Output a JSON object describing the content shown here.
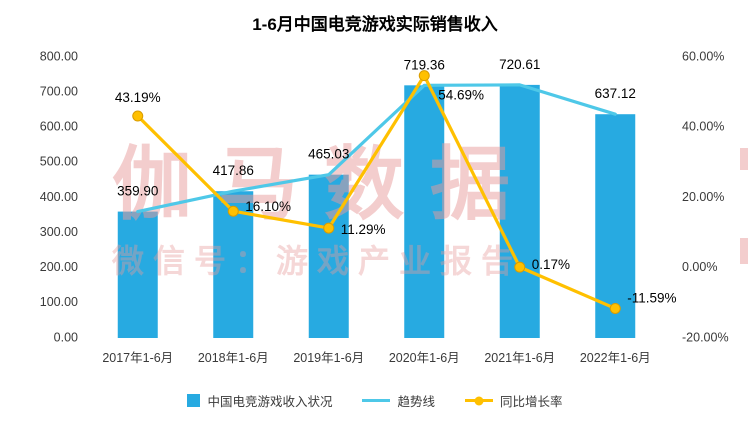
{
  "title": "1-6月中国电竞游戏实际销售收入",
  "watermark": {
    "main": "伽马数据",
    "sub": "微信号：游戏产业报告"
  },
  "legend": [
    {
      "label": "中国电竞游戏收入状况",
      "type": "bar",
      "color": "#27AAE1"
    },
    {
      "label": "趋势线",
      "type": "line",
      "color": "#4EC8E8"
    },
    {
      "label": "同比增长率",
      "type": "line-marker",
      "color": "#FFC000"
    }
  ],
  "chart_data": {
    "type": "bar+line combo",
    "title": "1-6月中国电竞游戏实际销售收入",
    "categories": [
      "2017年1-6月",
      "2018年1-6月",
      "2019年1-6月",
      "2020年1-6月",
      "2021年1-6月",
      "2022年1-6月"
    ],
    "series": [
      {
        "name": "中国电竞游戏收入状况",
        "type": "bar",
        "axis": "left",
        "color": "#27AAE1",
        "marker": false,
        "values": [
          359.9,
          417.86,
          465.03,
          719.36,
          720.61,
          637.12
        ]
      },
      {
        "name": "趋势线",
        "type": "line",
        "axis": "left",
        "color": "#4EC8E8",
        "marker": false,
        "values": [
          359.9,
          417.86,
          465.03,
          719.36,
          720.61,
          637.12
        ]
      },
      {
        "name": "同比增长率",
        "type": "line",
        "axis": "right",
        "color": "#FFC000",
        "marker": true,
        "values": [
          43.19,
          16.1,
          11.29,
          54.69,
          0.17,
          -11.59
        ]
      }
    ],
    "left_axis": {
      "min": 0,
      "max": 800,
      "step": 100,
      "tick_format": "0.00"
    },
    "right_axis": {
      "min": -20,
      "max": 60,
      "step": 20,
      "tick_format": "0.00%"
    },
    "grid": false,
    "legend_position": "bottom"
  }
}
